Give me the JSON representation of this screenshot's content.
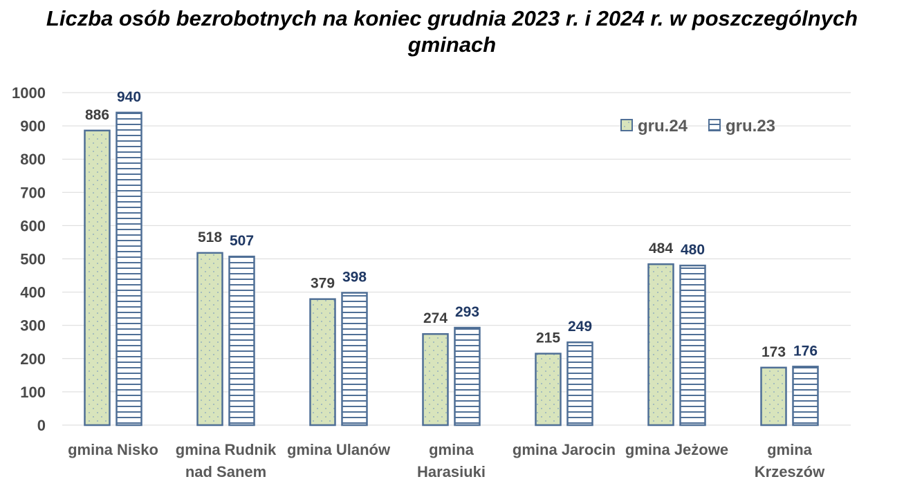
{
  "chart_data": {
    "type": "bar",
    "title": "Liczba osób bezrobotnych na koniec grudnia 2023 r. i 2024 r. w poszczególnych gminach",
    "categories": [
      [
        "gmina Nisko"
      ],
      [
        "gmina Rudnik",
        "nad Sanem"
      ],
      [
        "gmina Ulanów"
      ],
      [
        "gmina",
        "Harasiuki"
      ],
      [
        "gmina Jarocin"
      ],
      [
        "gmina Jeżowe"
      ],
      [
        "gmina",
        "Krzeszów"
      ]
    ],
    "series": [
      {
        "name": "gru.24",
        "values": [
          886,
          518,
          379,
          274,
          215,
          484,
          173
        ],
        "pattern": "dots",
        "fill": "#d8e4bc",
        "stroke": "#4f6f96",
        "label_color": "#3f3f3f"
      },
      {
        "name": "gru.23",
        "values": [
          940,
          507,
          398,
          293,
          249,
          480,
          176
        ],
        "pattern": "hlines",
        "fill": "#ffffff",
        "stroke": "#4f6f96",
        "label_color": "#1f3864"
      }
    ],
    "ylim": [
      0,
      1000
    ],
    "yticks": [
      0,
      100,
      200,
      300,
      400,
      500,
      600,
      700,
      800,
      900,
      1000
    ],
    "xlabel": "",
    "ylabel": "",
    "grid": true,
    "legend_position": "top-right"
  },
  "colors": {
    "grid": "#d9d9d9",
    "bar_stroke": "#4f6f96",
    "dot": "#7f9fbf",
    "stripe": "#4f6f96"
  }
}
